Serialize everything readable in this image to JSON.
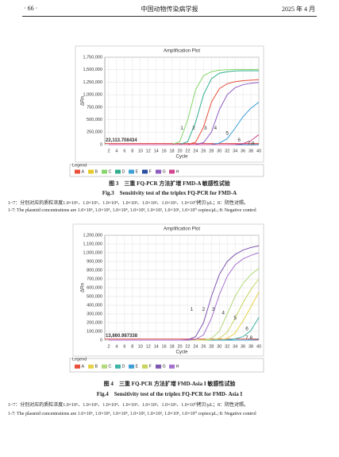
{
  "header": {
    "page": "· 66 ·",
    "journal": "中国动物传染病学报",
    "date": "2025 年 4 月"
  },
  "chart_data": [
    {
      "type": "line",
      "title": "Amplification Plot",
      "x_label": "Cycle",
      "y_label": "ΔRn",
      "legend_title": "Legend",
      "grid": true,
      "x": [
        2,
        6,
        10,
        14,
        16,
        18,
        20,
        22,
        24,
        26,
        28,
        30,
        32,
        34,
        36,
        38,
        40
      ],
      "xlim": [
        1,
        40
      ],
      "xticks": [
        2,
        4,
        6,
        8,
        10,
        12,
        14,
        16,
        18,
        20,
        22,
        24,
        26,
        28,
        30,
        32,
        34,
        36,
        38,
        40
      ],
      "ylim": [
        0,
        1750000
      ],
      "yticks": [
        0,
        {
          "value": 250000,
          "label": "250,000"
        },
        {
          "value": 500000,
          "label": "500,000"
        },
        {
          "value": 750000,
          "label": "750,000"
        },
        {
          "value": 1000000,
          "label": "1,000,000"
        },
        {
          "value": 1250000,
          "label": "1,250,000"
        },
        {
          "value": 1500000,
          "label": "1,500,000"
        },
        {
          "value": 1750000,
          "label": "1,750,000"
        }
      ],
      "threshold": {
        "value": 22113.708434,
        "label": "22,113.708434"
      },
      "series": [
        {
          "name": "A",
          "color": "#e8503a",
          "values": [
            0,
            0,
            0,
            0,
            0,
            0,
            0,
            5000,
            50000,
            350000,
            850000,
            1120000,
            1220000,
            1260000,
            1280000,
            1290000,
            1300000
          ]
        },
        {
          "name": "B",
          "color": "#e6c928",
          "values": [
            0,
            0,
            0,
            0,
            0,
            0,
            0,
            0,
            0,
            0,
            0,
            0,
            0,
            0,
            0,
            0,
            5000
          ]
        },
        {
          "name": "C",
          "color": "#86d66c",
          "values": [
            0,
            0,
            0,
            0,
            0,
            5000,
            60000,
            500000,
            1100000,
            1380000,
            1460000,
            1490000,
            1500000,
            1505000,
            1505000,
            1505000,
            1505000
          ]
        },
        {
          "name": "D",
          "color": "#2fae8e",
          "values": [
            0,
            0,
            0,
            0,
            0,
            0,
            5000,
            60000,
            450000,
            1000000,
            1320000,
            1430000,
            1460000,
            1475000,
            1480000,
            1480000,
            1480000
          ]
        },
        {
          "name": "E",
          "color": "#3d9fd6",
          "values": [
            0,
            0,
            0,
            0,
            0,
            0,
            0,
            0,
            0,
            0,
            5000,
            30000,
            120000,
            330000,
            560000,
            730000,
            850000
          ]
        },
        {
          "name": "F",
          "color": "#2b4fa0",
          "values": [
            0,
            0,
            0,
            0,
            0,
            0,
            0,
            0,
            0,
            0,
            0,
            0,
            0,
            0,
            0,
            0,
            0
          ]
        },
        {
          "name": "G",
          "color": "#8f5cc0",
          "values": [
            0,
            0,
            0,
            0,
            0,
            0,
            0,
            0,
            5000,
            40000,
            250000,
            700000,
            1000000,
            1140000,
            1200000,
            1230000,
            1245000
          ]
        },
        {
          "name": "H",
          "color": "#d0458f",
          "values": [
            0,
            0,
            0,
            0,
            0,
            0,
            0,
            0,
            0,
            0,
            0,
            0,
            0,
            5000,
            20000,
            80000,
            200000
          ]
        }
      ],
      "annotations": [
        {
          "text": "1",
          "x": 20.5,
          "y": 330000
        },
        {
          "text": "2",
          "x": 23.5,
          "y": 330000
        },
        {
          "text": "3",
          "x": 26.5,
          "y": 330000
        },
        {
          "text": "4",
          "x": 29,
          "y": 330000
        },
        {
          "text": "5",
          "x": 32,
          "y": 230000
        },
        {
          "text": "6",
          "x": 35,
          "y": 90000
        },
        {
          "text": "7,8",
          "x": 38,
          "y": 20000
        }
      ],
      "caption": {
        "cn": "图 3　三重 FQ-PCR 方法扩增 FMD-A 敏感性试验",
        "en": "Fig.3　Sensitivity test of the triplex FQ-PCR for FMD-A",
        "note_cn": "1~7：分别对应的质粒浓度1.0×10⁶、1.0×10⁵、1.0×10⁴、1.0×10³、1.0×10²、1.0×10¹、1.0×10⁰拷贝/μL；8：阴性对照。",
        "note_en": "1-7: The plasmid concentrations are 1.0×10⁶, 1.0×10⁵, 1.0×10⁴, 1.0×10³, 1.0×10², 1.0×10¹, 1.0×10⁰ copies/μL; 8: Negative control"
      }
    },
    {
      "type": "line",
      "title": "Amplification Plot",
      "x_label": "Cycle",
      "y_label": "ΔRn",
      "legend_title": "Legend",
      "grid": true,
      "x": [
        2,
        6,
        10,
        14,
        16,
        18,
        20,
        22,
        24,
        26,
        28,
        30,
        32,
        34,
        36,
        38,
        40
      ],
      "xlim": [
        1,
        40
      ],
      "xticks": [
        2,
        4,
        6,
        8,
        10,
        12,
        14,
        16,
        18,
        20,
        22,
        24,
        26,
        28,
        30,
        32,
        34,
        36,
        38,
        40
      ],
      "ylim": [
        0,
        1200000
      ],
      "yticks": [
        0,
        {
          "value": 100000,
          "label": "100,000"
        },
        {
          "value": 200000,
          "label": "200,000"
        },
        {
          "value": 300000,
          "label": "300,000"
        },
        {
          "value": 400000,
          "label": "400,000"
        },
        {
          "value": 500000,
          "label": "500,000"
        },
        {
          "value": 600000,
          "label": "600,000"
        },
        {
          "value": 700000,
          "label": "700,000"
        },
        {
          "value": 800000,
          "label": "800,000"
        },
        {
          "value": 900000,
          "label": "900,000"
        },
        {
          "value": 1000000,
          "label": "1,000,000"
        },
        {
          "value": 1100000,
          "label": "1,100,000"
        },
        {
          "value": 1200000,
          "label": "1,200,000"
        }
      ],
      "threshold": {
        "value": 13860.987338,
        "label": "13,860.987338"
      },
      "series": [
        {
          "name": "A",
          "color": "#e8503a",
          "values": [
            0,
            0,
            0,
            0,
            0,
            0,
            0,
            0,
            0,
            0,
            0,
            0,
            0,
            0,
            0,
            0,
            5000
          ]
        },
        {
          "name": "B",
          "color": "#e6d24a",
          "values": [
            0,
            0,
            0,
            0,
            0,
            0,
            0,
            0,
            0,
            0,
            0,
            5000,
            20000,
            80000,
            220000,
            380000,
            550000
          ]
        },
        {
          "name": "C",
          "color": "#b4d97a",
          "values": [
            0,
            0,
            0,
            0,
            0,
            0,
            0,
            0,
            0,
            5000,
            20000,
            100000,
            300000,
            500000,
            650000,
            750000,
            820000
          ]
        },
        {
          "name": "D",
          "color": "#3fb3a6",
          "values": [
            0,
            0,
            0,
            0,
            0,
            0,
            0,
            0,
            0,
            0,
            0,
            0,
            5000,
            15000,
            40000,
            110000,
            260000
          ]
        },
        {
          "name": "E",
          "color": "#3d9fd6",
          "values": [
            0,
            0,
            0,
            0,
            0,
            0,
            0,
            0,
            0,
            0,
            0,
            0,
            0,
            0,
            0,
            0,
            10000
          ]
        },
        {
          "name": "F",
          "color": "#c9d45e",
          "values": [
            0,
            0,
            0,
            0,
            0,
            0,
            0,
            0,
            0,
            0,
            5000,
            20000,
            90000,
            250000,
            430000,
            580000,
            700000
          ]
        },
        {
          "name": "G",
          "color": "#7e55b0",
          "values": [
            0,
            0,
            0,
            0,
            0,
            0,
            0,
            5000,
            40000,
            200000,
            500000,
            750000,
            900000,
            980000,
            1030000,
            1060000,
            1080000
          ]
        },
        {
          "name": "H",
          "color": "#a672cf",
          "values": [
            0,
            0,
            0,
            0,
            0,
            0,
            0,
            0,
            10000,
            60000,
            250000,
            520000,
            730000,
            860000,
            930000,
            970000,
            1000000
          ]
        }
      ],
      "annotations": [
        {
          "text": "1",
          "x": 23,
          "y": 350000
        },
        {
          "text": "2",
          "x": 26,
          "y": 350000
        },
        {
          "text": "3",
          "x": 28.5,
          "y": 350000
        },
        {
          "text": "4",
          "x": 31,
          "y": 310000
        },
        {
          "text": "5",
          "x": 34,
          "y": 250000
        },
        {
          "text": "6",
          "x": 37,
          "y": 130000
        },
        {
          "text": "7,8",
          "x": 37.5,
          "y": 25000
        }
      ],
      "caption": {
        "cn": "图 4　三重 FQ-PCR 方法扩增 FMD-Asia I 敏感性试验",
        "en": "Fig.4　Sensitivity test of the triplex FQ-PCR for FMD- Asia I",
        "note_cn": "1~7：分别对应的质粒浓度1.0×10⁶、1.0×10⁵、1.0×10⁴、1.0×10³、1.0×10²、1.0×10¹、1.0×10⁰拷贝/μL；8：阴性对照。",
        "note_en": "1-7: The plasmid concentrations are 1.0×10⁶, 1.0×10⁵, 1.0×10⁴, 1.0×10³, 1.0×10², 1.0×10¹, 1.0×10⁰ copies/μL; 8: Negative control"
      }
    }
  ]
}
